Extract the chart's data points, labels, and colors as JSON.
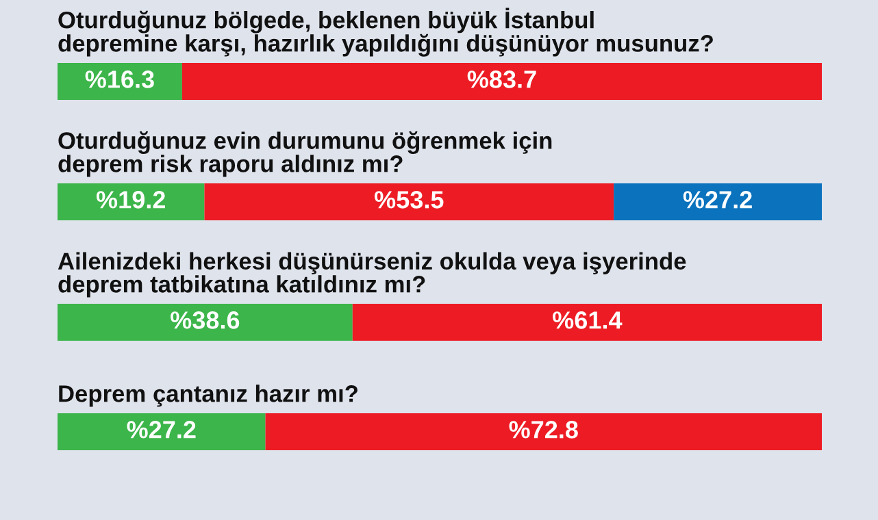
{
  "chart_data": [
    {
      "type": "bar",
      "orientation": "horizontal",
      "stacked": true,
      "tick_labels": false,
      "title": "Oturduğunuz bölgede, beklenen büyük İstanbul\ndepremine karşı, hazırlık yapıldığını düşünüyor musunuz?",
      "categories": [
        null
      ],
      "series": [
        {
          "color": "#3cb54a",
          "values": [
            16.3
          ],
          "value_labels": [
            "%16.3"
          ]
        },
        {
          "color": "#ed1c24",
          "values": [
            83.7
          ],
          "value_labels": [
            "%83.7"
          ]
        }
      ]
    },
    {
      "type": "bar",
      "orientation": "horizontal",
      "stacked": true,
      "tick_labels": false,
      "title": "Oturduğunuz evin durumunu öğrenmek için\ndeprem risk raporu aldınız mı?",
      "categories": [
        null
      ],
      "series": [
        {
          "color": "#3cb54a",
          "values": [
            19.2
          ],
          "value_labels": [
            "%19.2"
          ]
        },
        {
          "color": "#ed1c24",
          "values": [
            53.5
          ],
          "value_labels": [
            "%53.5"
          ]
        },
        {
          "color": "#0b72bd",
          "values": [
            27.2
          ],
          "value_labels": [
            "%27.2"
          ]
        }
      ]
    },
    {
      "type": "bar",
      "orientation": "horizontal",
      "stacked": true,
      "tick_labels": false,
      "title": "Ailenizdeki herkesi düşünürseniz okulda veya işyerinde\ndeprem tatbikatına katıldınız mı?",
      "categories": [
        null
      ],
      "series": [
        {
          "color": "#3cb54a",
          "values": [
            38.6
          ],
          "value_labels": [
            "%38.6"
          ]
        },
        {
          "color": "#ed1c24",
          "values": [
            61.4
          ],
          "value_labels": [
            "%61.4"
          ]
        }
      ]
    },
    {
      "type": "bar",
      "orientation": "horizontal",
      "stacked": true,
      "tick_labels": false,
      "title": "Deprem çantanız hazır mı?",
      "categories": [
        null
      ],
      "series": [
        {
          "color": "#3cb54a",
          "values": [
            27.2
          ],
          "value_labels": [
            "%27.2"
          ]
        },
        {
          "color": "#ed1c24",
          "values": [
            72.8
          ],
          "value_labels": [
            "%72.8"
          ]
        }
      ]
    }
  ]
}
